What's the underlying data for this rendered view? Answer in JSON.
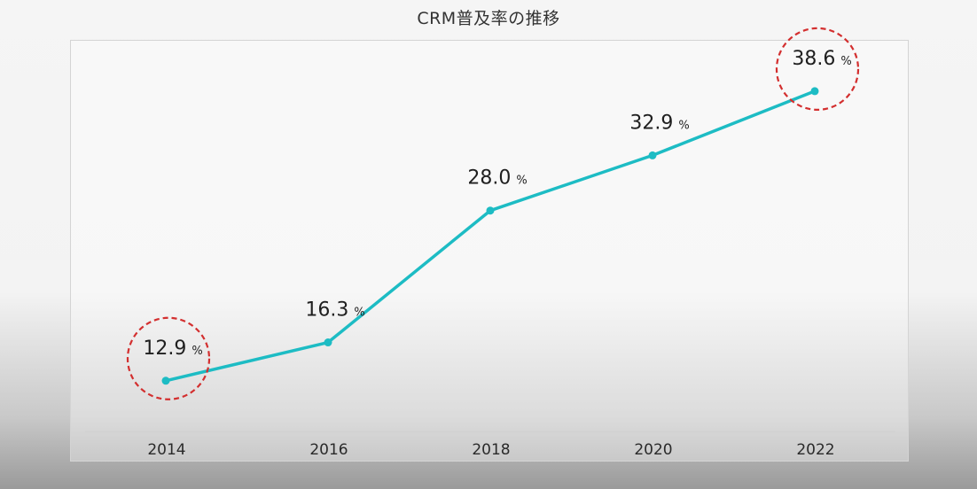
{
  "chart_data": {
    "type": "line",
    "title": "CRM普及率の推移",
    "categories": [
      "2014",
      "2016",
      "2018",
      "2020",
      "2022"
    ],
    "series": [
      {
        "values": [
          12.9,
          16.3,
          28.0,
          32.9,
          38.6
        ],
        "color": "#1dbcc4"
      }
    ],
    "data_labels": [
      "12.9",
      "16.3",
      "28.0",
      "32.9",
      "38.6"
    ],
    "unit": "%",
    "ylim": [
      8.4,
      40.4
    ],
    "grid": false,
    "highlight_color": "#d32f2f",
    "highlighted_categories": [
      "2014",
      "2022"
    ]
  }
}
